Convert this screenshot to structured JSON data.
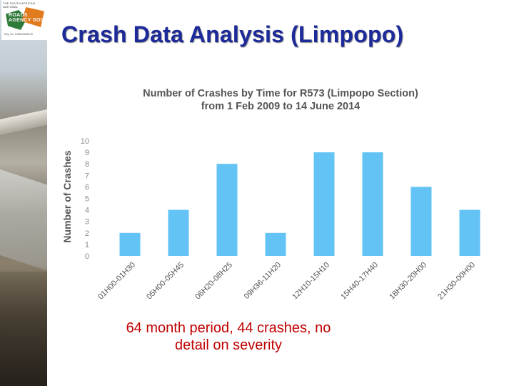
{
  "logo": {
    "top_text": "THE SOUTH AFRICAN NATIONAL",
    "name": "ROADS AGENCY SOC",
    "reg": "Reg. No. 1998/009584/30"
  },
  "page_title": "Crash Data Analysis (Limpopo)",
  "chart_data": {
    "type": "bar",
    "title": "Number of Crashes by Time for R573 (Limpopo Section)",
    "subtitle": "from 1 Feb 2009 to 14 June 2014",
    "xlabel": "",
    "ylabel": "Number of Crashes",
    "categories": [
      "01H00-01H30",
      "05H00-05H45",
      "06H20-08H25",
      "09H36-11H20",
      "12H10-15H10",
      "15H40-17H40",
      "18H30-20H00",
      "21H30-00H00"
    ],
    "values": [
      2,
      4,
      8,
      2,
      9,
      9,
      6,
      4
    ],
    "ylim": [
      0,
      10
    ],
    "yticks": [
      "0",
      "1",
      "2",
      "3",
      "4",
      "5",
      "6",
      "7",
      "8",
      "9",
      "10"
    ],
    "grid": false,
    "bar_color": "#63c3f5"
  },
  "caption": "64 month period, 44 crashes, no detail on severity"
}
